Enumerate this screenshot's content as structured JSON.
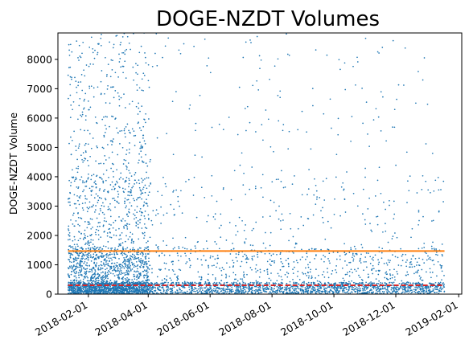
{
  "chart_data": {
    "type": "scatter",
    "title": "DOGE-NZDT Volumes",
    "xlabel": "",
    "ylabel": "DOGE-NZDT Volume",
    "x_range": [
      "2018-01-02",
      "2019-02-04"
    ],
    "ylim": [
      0,
      8900
    ],
    "y_ticks": [
      0,
      1000,
      2000,
      3000,
      4000,
      5000,
      6000,
      7000,
      8000
    ],
    "x_ticks": [
      "2018-02-01",
      "2018-04-01",
      "2018-06-01",
      "2018-08-01",
      "2018-10-01",
      "2018-12-01",
      "2019-02-01"
    ],
    "x_tick_labels": [
      "2018-02-01",
      "2018-04-01",
      "2018-06-01",
      "2018-08-01",
      "2018-10-01",
      "2018-12-01",
      "2019-02-01"
    ],
    "data_start": "2018-01-12",
    "data_end": "2019-01-18",
    "reference_lines": [
      {
        "value": 1470,
        "style": "solid",
        "color": "#ff7f0e"
      },
      {
        "value": 300,
        "style": "dashed",
        "color": "#d62728"
      }
    ],
    "series": [
      {
        "color": "#1f77b4"
      }
    ],
    "grid": false
  }
}
